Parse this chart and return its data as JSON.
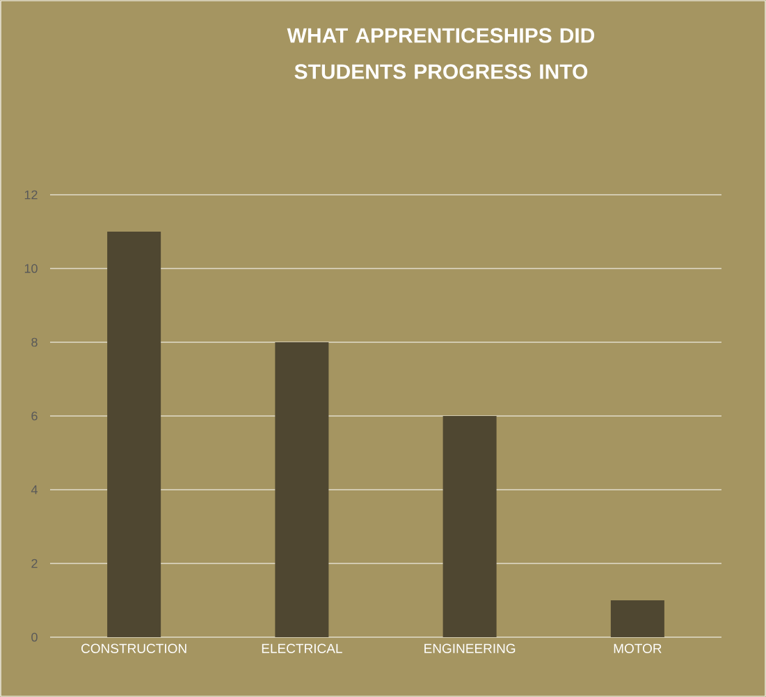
{
  "chart_data": {
    "type": "bar",
    "title": "WHAT APPRENTICESHIPS DID STUDENTS PROGRESS INTO",
    "categories": [
      "CONSTRUCTION",
      "ELECTRICAL",
      "ENGINEERING",
      "MOTOR"
    ],
    "values": [
      11,
      8,
      6,
      1
    ],
    "color": "#4f4731",
    "ylim": [
      0,
      12
    ],
    "yticks": [
      0,
      2,
      4,
      6,
      8,
      10,
      12
    ],
    "grid": "y"
  }
}
